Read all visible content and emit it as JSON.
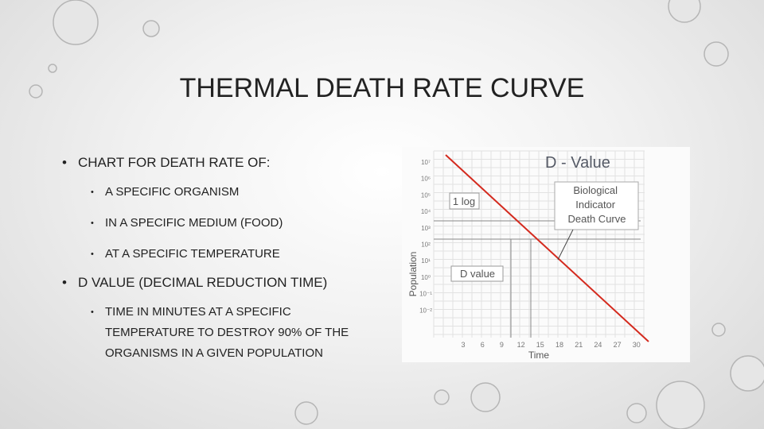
{
  "header": {
    "title": "THERMAL DEATH RATE CURVE"
  },
  "bullets": [
    {
      "text": "CHART FOR DEATH RATE OF:",
      "sub": [
        "A SPECIFIC ORGANISM",
        "IN A SPECIFIC MEDIUM (FOOD)",
        "AT A SPECIFIC TEMPERATURE"
      ]
    },
    {
      "text": "D VALUE (DECIMAL REDUCTION TIME)",
      "sub": [
        "TIME IN MINUTES AT A SPECIFIC TEMPERATURE TO DESTROY 90% OF THE ORGANISMS IN A GIVEN POPULATION"
      ]
    }
  ],
  "figure": {
    "title": "D - Value",
    "curve_label": "Biological Indicator Death Curve",
    "log_label": "1 log",
    "d_label": "D value",
    "x_label": "Time",
    "y_label": "Population",
    "x_ticks": [
      3,
      6,
      9,
      12,
      15,
      18,
      21,
      24,
      27,
      30
    ],
    "y_ticks": [
      "10⁷",
      "10⁶",
      "10⁵",
      "10⁴",
      "10³",
      "10²",
      "10¹",
      "10⁰",
      "10⁻¹",
      "10⁻²"
    ]
  }
}
